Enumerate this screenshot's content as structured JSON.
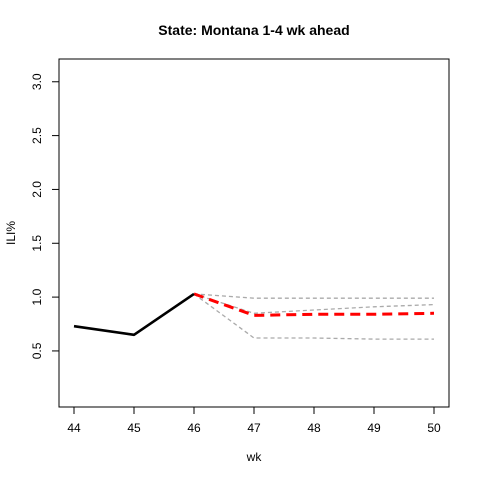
{
  "chart_data": {
    "type": "line",
    "title": "State: Montana 1-4 wk ahead",
    "xlabel": "wk",
    "ylabel": "ILI%",
    "xlim": [
      44,
      50
    ],
    "ylim": [
      0.1,
      3.1
    ],
    "x_ticks": [
      "44",
      "45",
      "46",
      "47",
      "48",
      "49",
      "50"
    ],
    "y_ticks": [
      "0.5",
      "1.0",
      "1.5",
      "2.0",
      "2.5",
      "3.0"
    ],
    "grid": false,
    "legend": "none",
    "series": [
      {
        "role": "observed",
        "color": "#000000",
        "style": "solid",
        "x": [
          44,
          45,
          46
        ],
        "y": [
          0.73,
          0.65,
          1.03
        ]
      },
      {
        "role": "forecast",
        "color": "#ff0000",
        "style": "dashed",
        "x": [
          46,
          47,
          48,
          49,
          50
        ],
        "y": [
          1.03,
          0.83,
          0.84,
          0.84,
          0.85
        ]
      },
      {
        "role": "upper-bound",
        "color": "#aaaaaa",
        "style": "dashed",
        "x": [
          46,
          47,
          48,
          49,
          50
        ],
        "y": [
          1.03,
          0.99,
          0.99,
          0.99,
          0.99
        ]
      },
      {
        "role": "middle-bound",
        "color": "#aaaaaa",
        "style": "dashed",
        "x": [
          46,
          47,
          48,
          49,
          50
        ],
        "y": [
          1.03,
          0.85,
          0.88,
          0.91,
          0.93
        ]
      },
      {
        "role": "lower-bound",
        "color": "#aaaaaa",
        "style": "dashed",
        "x": [
          46,
          47,
          48,
          49,
          50
        ],
        "y": [
          1.03,
          0.62,
          0.62,
          0.61,
          0.61
        ]
      }
    ]
  }
}
